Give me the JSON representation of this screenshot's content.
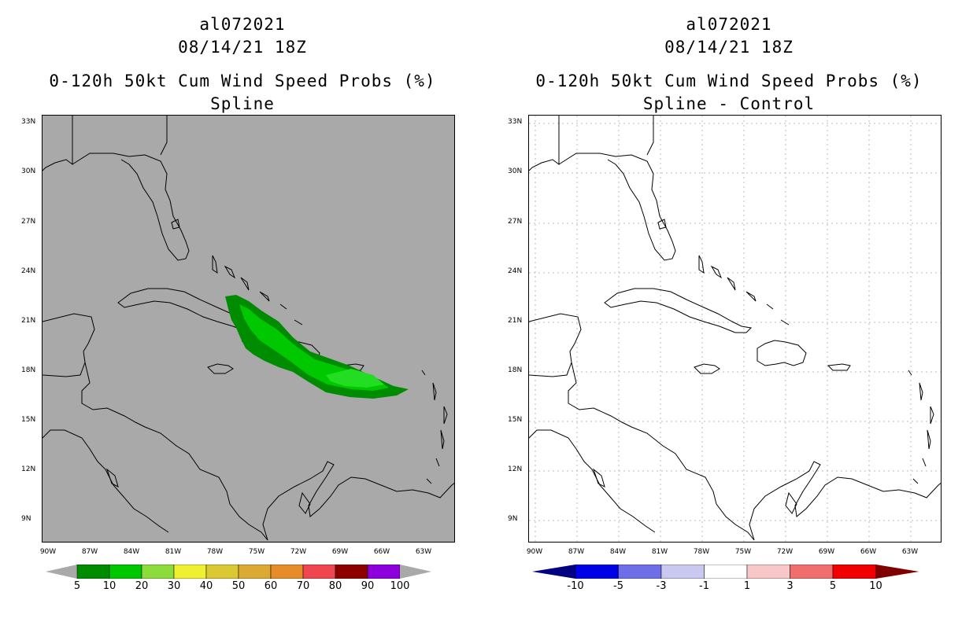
{
  "left_panel": {
    "title_line1": "al072021",
    "title_line2": "08/14/21 18Z",
    "title_line3": "0-120h 50kt Cum Wind Speed Probs (%)",
    "title_line4": "Spline",
    "background_color": "#a9a9a9",
    "colorbar": {
      "labels": [
        "5",
        "10",
        "20",
        "30",
        "40",
        "50",
        "60",
        "70",
        "80",
        "90",
        "100"
      ],
      "colors": [
        "#008c00",
        "#00c800",
        "#8cdc3c",
        "#f0f032",
        "#dcc832",
        "#dcaa32",
        "#e68c28",
        "#f04650",
        "#8c0000",
        "#8c00dc"
      ],
      "end_color": "#a9a9a9"
    }
  },
  "right_panel": {
    "title_line1": "al072021",
    "title_line2": "08/14/21 18Z",
    "title_line3": "0-120h 50kt Cum Wind Speed Probs (%)",
    "title_line4": "Spline - Control",
    "background_color": "#ffffff",
    "colorbar": {
      "labels": [
        "-10",
        "-5",
        "-3",
        "-1",
        "1",
        "3",
        "5",
        "10"
      ],
      "colors": [
        "#0000e6",
        "#6e6ee6",
        "#c8c8f0",
        "#ffffff",
        "#f8c8c8",
        "#f06e6e",
        "#f00000"
      ],
      "left_end_color": "#000080",
      "right_end_color": "#800000"
    }
  },
  "axes": {
    "lat_labels": [
      "33N",
      "30N",
      "27N",
      "24N",
      "21N",
      "18N",
      "15N",
      "12N",
      "9N"
    ],
    "lon_labels": [
      "90W",
      "87W",
      "84W",
      "81W",
      "78W",
      "75W",
      "72W",
      "69W",
      "66W",
      "63W"
    ]
  }
}
